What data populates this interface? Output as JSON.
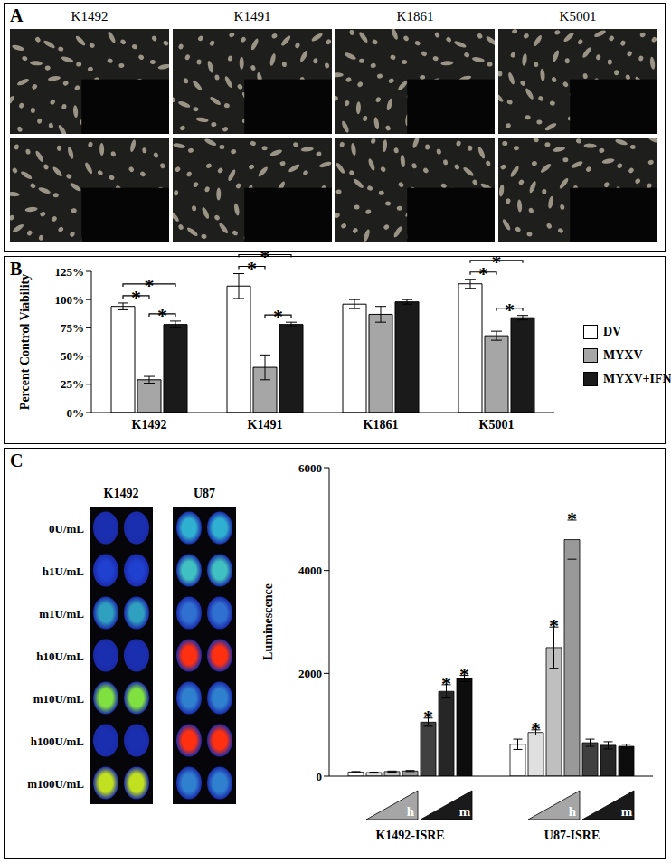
{
  "chart_data": [
    {
      "type": "bar",
      "title": "B",
      "categories": [
        "K1492",
        "K1491",
        "K1861",
        "K5001"
      ],
      "y_label": "Percent Control Viability",
      "ylim": [
        0,
        125
      ],
      "yticks": [
        {
          "value": 0,
          "label": "0%"
        },
        {
          "value": 25,
          "label": "25%"
        },
        {
          "value": 50,
          "label": "50%"
        },
        {
          "value": 75,
          "label": "75%"
        },
        {
          "value": 100,
          "label": "100%"
        },
        {
          "value": 125,
          "label": "125%"
        }
      ],
      "legend": "right",
      "series": [
        {
          "name": "DV",
          "color": "#ffffff",
          "values": [
            94,
            112,
            96,
            114
          ],
          "errors": [
            3,
            11,
            4,
            4
          ]
        },
        {
          "name": "MYXV",
          "color": "#a6a6a6",
          "values": [
            29,
            40,
            87,
            68
          ],
          "errors": [
            3,
            11,
            7,
            4
          ]
        },
        {
          "name": "MYXV+IFN",
          "color": "#1a1a1a",
          "values": [
            78,
            78,
            98,
            84
          ],
          "errors": [
            3,
            2,
            2,
            2
          ]
        }
      ],
      "comparisons": [
        {
          "category": "K1492",
          "pairs": [
            [
              "DV",
              "MYXV"
            ],
            [
              "DV",
              "MYXV+IFN"
            ],
            [
              "MYXV",
              "MYXV+IFN"
            ]
          ]
        },
        {
          "category": "K1491",
          "pairs": [
            [
              "DV",
              "MYXV"
            ],
            [
              "DV",
              "MYXV+IFN"
            ],
            [
              "MYXV",
              "MYXV+IFN"
            ]
          ]
        },
        {
          "category": "K5001",
          "pairs": [
            [
              "DV",
              "MYXV"
            ],
            [
              "DV",
              "MYXV+IFN"
            ],
            [
              "MYXV",
              "MYXV+IFN"
            ]
          ]
        }
      ],
      "comparison_label": "*"
    },
    {
      "type": "bar",
      "title": "C",
      "categories": [
        "K1492-ISRE",
        "U87-ISRE"
      ],
      "y_label": "Luminescence",
      "ylim": [
        0,
        6000
      ],
      "yticks": [
        0,
        2000,
        4000,
        6000
      ],
      "series": [
        {
          "color": "#ffffff",
          "values": [
            80,
            620
          ],
          "errors": [
            10,
            100
          ],
          "significant": [
            false,
            false
          ]
        },
        {
          "color": "#e0e0e0",
          "values": [
            70,
            850
          ],
          "errors": [
            10,
            50
          ],
          "significant": [
            false,
            true
          ]
        },
        {
          "color": "#bfbfbf",
          "values": [
            90,
            2500
          ],
          "errors": [
            10,
            400
          ],
          "significant": [
            false,
            true
          ]
        },
        {
          "color": "#999999",
          "values": [
            100,
            4600
          ],
          "errors": [
            10,
            380
          ],
          "significant": [
            false,
            true
          ]
        },
        {
          "color": "#404040",
          "values": [
            1050,
            650
          ],
          "errors": [
            80,
            70
          ],
          "significant": [
            true,
            false
          ]
        },
        {
          "color": "#262626",
          "values": [
            1650,
            600
          ],
          "errors": [
            130,
            70
          ],
          "significant": [
            true,
            false
          ]
        },
        {
          "color": "#0d0d0d",
          "values": [
            1900,
            580
          ],
          "errors": [
            60,
            40
          ],
          "significant": [
            true,
            false
          ]
        }
      ],
      "dose_labels": [
        {
          "label": "h",
          "color": "#a6a6a6",
          "series_from": 1,
          "series_to": 3
        },
        {
          "label": "m",
          "color": "#1a1a1a",
          "series_from": 4,
          "series_to": 6
        }
      ],
      "significance_label": "*"
    }
  ],
  "panel_a": {
    "title": "A",
    "columns": [
      "K1492",
      "K1491",
      "K1861",
      "K5001"
    ]
  },
  "panel_c_images": {
    "columns": [
      "K1492",
      "U87"
    ],
    "rows": [
      "0U/mL",
      "h1U/mL",
      "m1U/mL",
      "h10U/mL",
      "m10U/mL",
      "h100U/mL",
      "m100U/mL"
    ],
    "well_colors": {
      "K1492": [
        "#1a2fb0",
        "#2040d0",
        "#30a0c0",
        "#1a2fb0",
        "#80e040",
        "#1a2fb0",
        "#c0e020"
      ],
      "U87": [
        "#30b0d0",
        "#40c0c0",
        "#3070d0",
        "#ff3010",
        "#3080d0",
        "#ff3010",
        "#3080d0"
      ]
    }
  }
}
